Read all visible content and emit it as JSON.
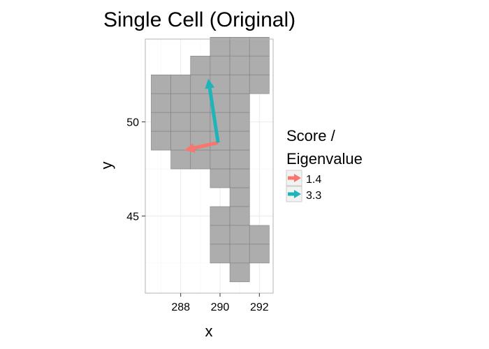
{
  "chart_data": {
    "type": "scatter",
    "title": "Single Cell (Original)",
    "xlabel": "x",
    "ylabel": "y",
    "xlim": [
      286.2,
      292.7
    ],
    "ylim": [
      40.9,
      54.4
    ],
    "x_ticks": [
      288,
      290,
      292
    ],
    "y_ticks": [
      45,
      50
    ],
    "grid": true,
    "tiles": [
      [
        290,
        54
      ],
      [
        291,
        54
      ],
      [
        292,
        54
      ],
      [
        289,
        53
      ],
      [
        290,
        53
      ],
      [
        291,
        53
      ],
      [
        292,
        53
      ],
      [
        287,
        52
      ],
      [
        288,
        52
      ],
      [
        289,
        52
      ],
      [
        290,
        52
      ],
      [
        291,
        52
      ],
      [
        292,
        52
      ],
      [
        287,
        51
      ],
      [
        288,
        51
      ],
      [
        289,
        51
      ],
      [
        290,
        51
      ],
      [
        291,
        51
      ],
      [
        287,
        50
      ],
      [
        288,
        50
      ],
      [
        289,
        50
      ],
      [
        290,
        50
      ],
      [
        291,
        50
      ],
      [
        287,
        49
      ],
      [
        288,
        49
      ],
      [
        289,
        49
      ],
      [
        290,
        49
      ],
      [
        291,
        49
      ],
      [
        288,
        48
      ],
      [
        289,
        48
      ],
      [
        290,
        48
      ],
      [
        291,
        48
      ],
      [
        290,
        47
      ],
      [
        291,
        47
      ],
      [
        291,
        46
      ],
      [
        290,
        45
      ],
      [
        291,
        45
      ],
      [
        290,
        44
      ],
      [
        291,
        44
      ],
      [
        292,
        44
      ],
      [
        290,
        43
      ],
      [
        291,
        43
      ],
      [
        292,
        43
      ],
      [
        291,
        42
      ]
    ],
    "vectors": [
      {
        "name": "1.4",
        "color": "#f8766d",
        "x0": 289.9,
        "y0": 48.9,
        "x1": 288.2,
        "y1": 48.5
      },
      {
        "name": "3.3",
        "color": "#1fb5b8",
        "x0": 289.9,
        "y0": 48.9,
        "x1": 289.4,
        "y1": 52.3
      }
    ],
    "legend": {
      "title_line1": "Score /",
      "title_line2": "Eigenvalue",
      "position": "right",
      "items": [
        "1.4",
        "3.3"
      ]
    },
    "colors": {
      "tile_fill": "#adadad",
      "tile_stroke": "#7f7f7f",
      "panel_border": "#b3b3b3",
      "grid_major": "#ebebeb",
      "grid_minor": "#f5f5f5"
    }
  }
}
